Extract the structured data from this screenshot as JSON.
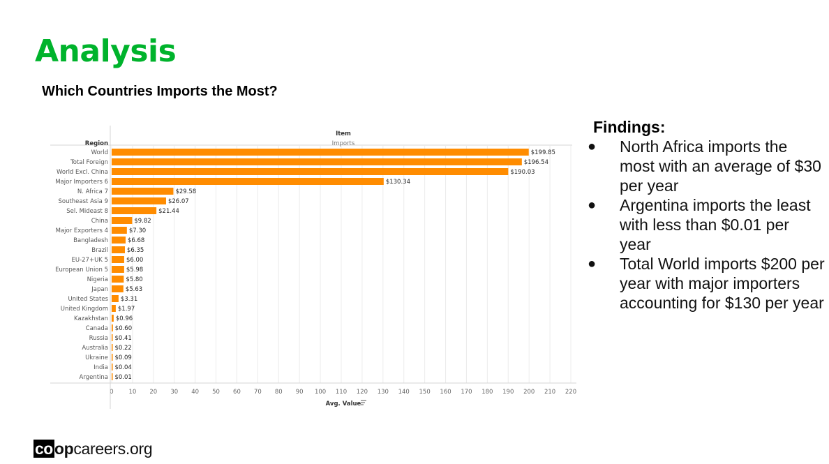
{
  "slide": {
    "title": "Analysis",
    "subtitle": "Which Countries Imports the Most?"
  },
  "findings": {
    "heading": "Findings:",
    "items": [
      "North Africa imports the most with an average of $30 per year",
      "Argentina imports the least with less than $0.01 per year",
      "Total World imports $200 per year with major importers accounting for $130 per year"
    ]
  },
  "logo": {
    "mark": "co",
    "bold_part": "op",
    "rest": "careers.org"
  },
  "chart_data": {
    "type": "bar",
    "orientation": "horizontal",
    "row_header": "Region",
    "column_header": "Item",
    "column_subheader": "Imports",
    "xlabel": "Avg. Value",
    "xlim": [
      0,
      220
    ],
    "x_ticks": [
      0,
      10,
      20,
      30,
      40,
      50,
      60,
      70,
      80,
      90,
      100,
      110,
      120,
      130,
      140,
      150,
      160,
      170,
      180,
      190,
      200,
      210,
      220
    ],
    "grid": true,
    "bar_color": "#ff8c00",
    "categories": [
      "World",
      "Total Foreign",
      "World Excl. China",
      "Major Importers 6",
      "N. Africa 7",
      "Southeast Asia 9",
      "Sel. Mideast 8",
      "China",
      "Major Exporters 4",
      "Bangladesh",
      "Brazil",
      "EU-27+UK 5",
      "European Union 5",
      "Nigeria",
      "Japan",
      "United States",
      "United Kingdom",
      "Kazakhstan",
      "Canada",
      "Russia",
      "Australia",
      "Ukraine",
      "India",
      "Argentina"
    ],
    "values": [
      199.85,
      196.54,
      190.03,
      130.34,
      29.58,
      26.07,
      21.44,
      9.82,
      7.3,
      6.68,
      6.35,
      6.0,
      5.98,
      5.8,
      5.63,
      3.31,
      1.97,
      0.96,
      0.6,
      0.41,
      0.22,
      0.09,
      0.04,
      0.01
    ],
    "value_labels": [
      "$199.85",
      "$196.54",
      "$190.03",
      "$130.34",
      "$29.58",
      "$26.07",
      "$21.44",
      "$9.82",
      "$7.30",
      "$6.68",
      "$6.35",
      "$6.00",
      "$5.98",
      "$5.80",
      "$5.63",
      "$3.31",
      "$1.97",
      "$0.96",
      "$0.60",
      "$0.41",
      "$0.22",
      "$0.09",
      "$0.04",
      "$0.01"
    ]
  }
}
